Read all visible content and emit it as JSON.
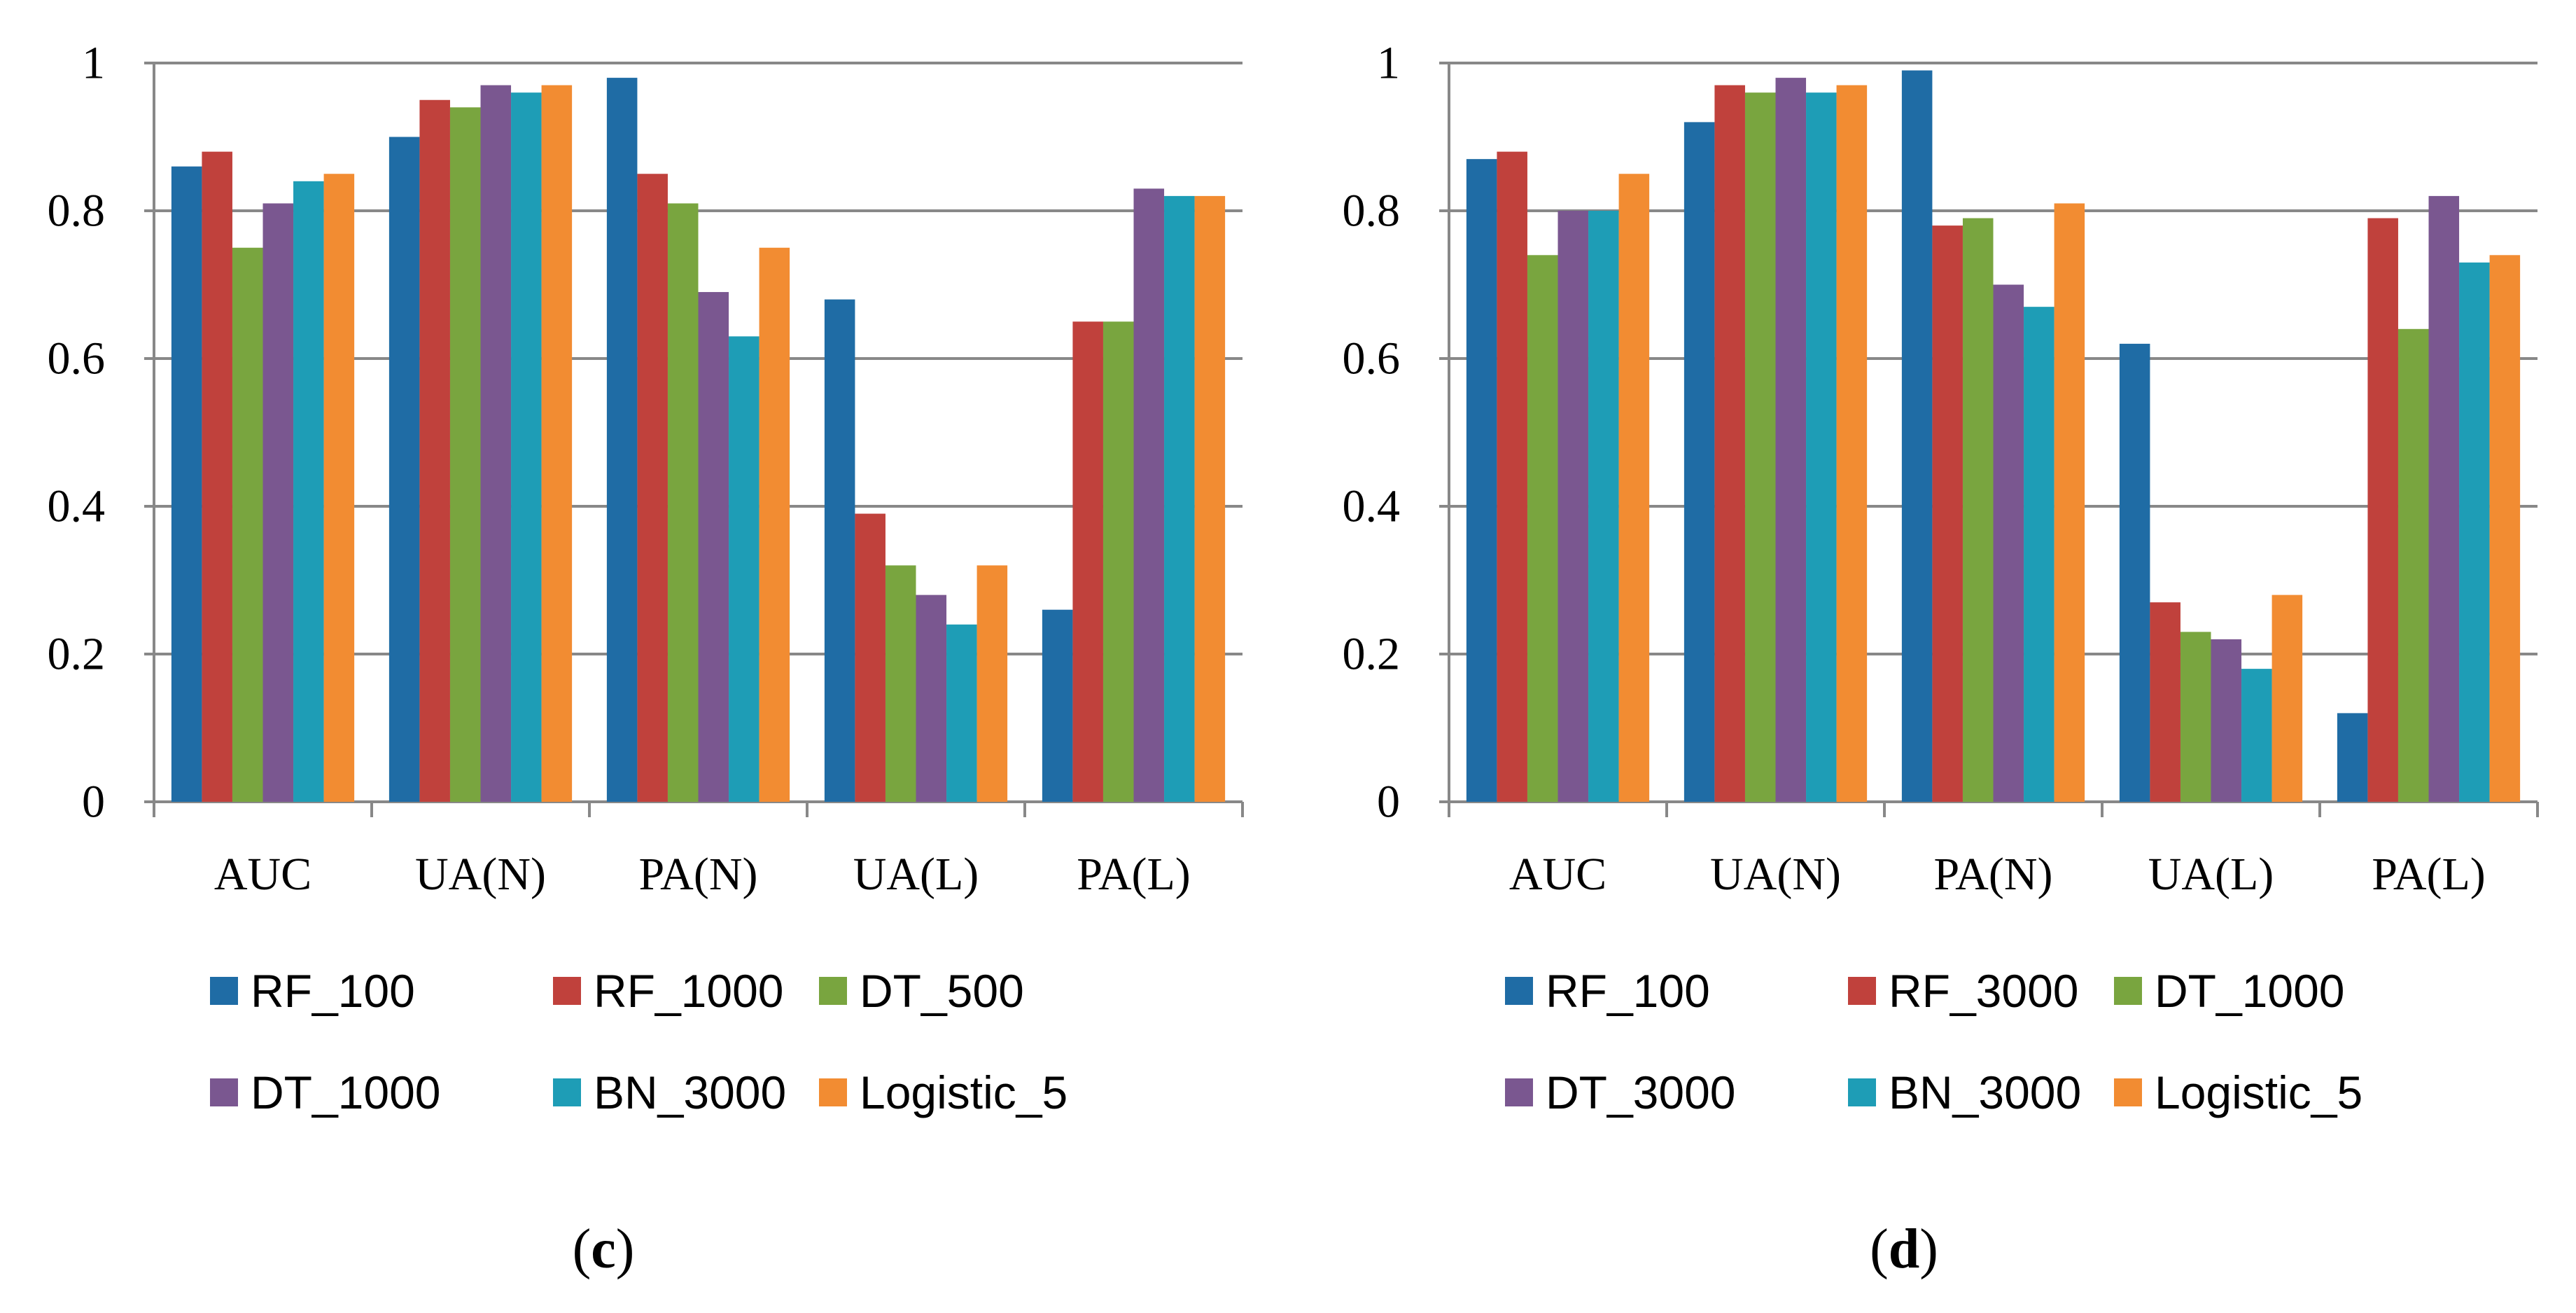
{
  "colors": {
    "series": [
      "#1F6CA5",
      "#C0413C",
      "#79A53F",
      "#7A5790",
      "#1E9DB6",
      "#F28C32"
    ],
    "grid": "#888888",
    "axis": "#888888"
  },
  "chart_data": [
    {
      "type": "bar",
      "panel": "c",
      "panel_label": {
        "open": "(",
        "letter": "c",
        "close": ")"
      },
      "categories": [
        "AUC",
        "UA(N)",
        "PA(N)",
        "UA(L)",
        "PA(L)"
      ],
      "ylim": [
        0,
        1
      ],
      "yticks": [
        0,
        0.2,
        0.4,
        0.6,
        0.8,
        1
      ],
      "ytick_labels": [
        "0",
        "0.2",
        "0.4",
        "0.6",
        "0.8",
        "1"
      ],
      "grid": true,
      "legend_position": "bottom",
      "series": [
        {
          "name": "RF_100",
          "values": [
            0.86,
            0.9,
            0.98,
            0.68,
            0.26
          ]
        },
        {
          "name": "RF_1000",
          "values": [
            0.88,
            0.95,
            0.85,
            0.39,
            0.65
          ]
        },
        {
          "name": "DT_500",
          "values": [
            0.75,
            0.94,
            0.81,
            0.32,
            0.65
          ]
        },
        {
          "name": "DT_1000",
          "values": [
            0.81,
            0.97,
            0.69,
            0.28,
            0.83
          ]
        },
        {
          "name": "BN_3000",
          "values": [
            0.84,
            0.96,
            0.63,
            0.24,
            0.82
          ]
        },
        {
          "name": "Logistic_5",
          "values": [
            0.85,
            0.97,
            0.75,
            0.32,
            0.82
          ]
        }
      ]
    },
    {
      "type": "bar",
      "panel": "d",
      "panel_label": {
        "open": "(",
        "letter": "d",
        "close": ")"
      },
      "categories": [
        "AUC",
        "UA(N)",
        "PA(N)",
        "UA(L)",
        "PA(L)"
      ],
      "ylim": [
        0,
        1
      ],
      "yticks": [
        0,
        0.2,
        0.4,
        0.6,
        0.8,
        1
      ],
      "ytick_labels": [
        "0",
        "0.2",
        "0.4",
        "0.6",
        "0.8",
        "1"
      ],
      "grid": true,
      "legend_position": "bottom",
      "series": [
        {
          "name": "RF_100",
          "values": [
            0.87,
            0.92,
            0.99,
            0.62,
            0.12
          ]
        },
        {
          "name": "RF_3000",
          "values": [
            0.88,
            0.97,
            0.78,
            0.27,
            0.79
          ]
        },
        {
          "name": "DT_1000",
          "values": [
            0.74,
            0.96,
            0.79,
            0.23,
            0.64
          ]
        },
        {
          "name": "DT_3000",
          "values": [
            0.8,
            0.98,
            0.7,
            0.22,
            0.82
          ]
        },
        {
          "name": "BN_3000",
          "values": [
            0.8,
            0.96,
            0.67,
            0.18,
            0.73
          ]
        },
        {
          "name": "Logistic_5",
          "values": [
            0.85,
            0.97,
            0.81,
            0.28,
            0.74
          ]
        }
      ]
    }
  ]
}
